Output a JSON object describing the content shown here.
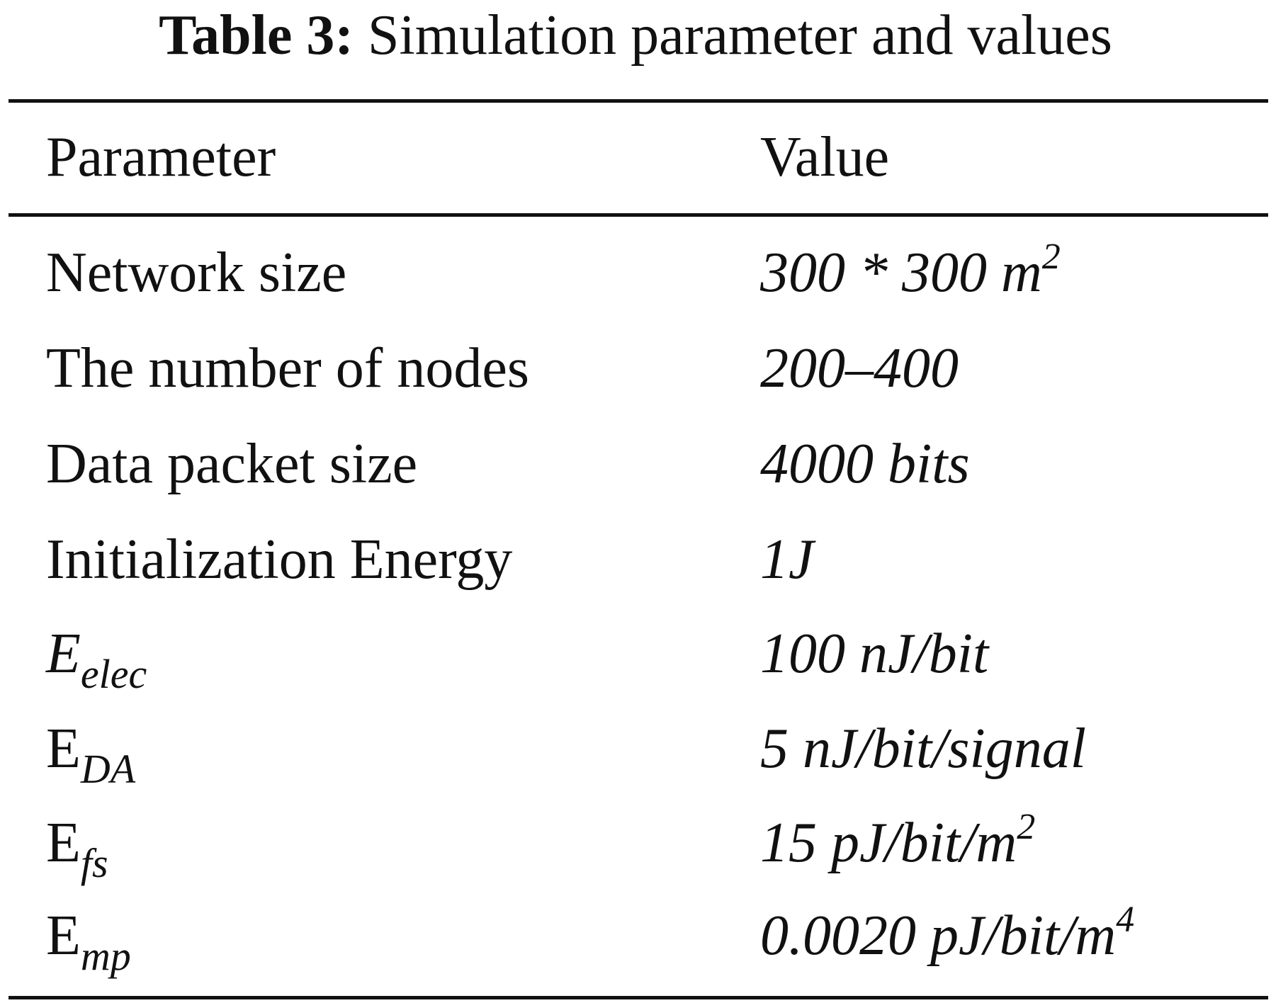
{
  "caption": {
    "label": "Table 3:",
    "title": "Simulation parameter and values"
  },
  "table": {
    "headers": {
      "parameter": "Parameter",
      "value": "Value"
    },
    "rows": [
      {
        "parameter": "Network size",
        "value": "300 * 300 m",
        "value_sup": "2"
      },
      {
        "parameter": "The number of nodes",
        "value": "200–400"
      },
      {
        "parameter": "Data packet size",
        "value": "4000 bits"
      },
      {
        "parameter": "Initialization Energy",
        "value": "1J"
      },
      {
        "parameter_base": "E",
        "parameter_sub": "elec",
        "value": "100 nJ/bit"
      },
      {
        "parameter_base": "E",
        "parameter_sub": "DA",
        "value": "5 nJ/bit/signal"
      },
      {
        "parameter_base": "E",
        "parameter_sub": "fs",
        "value": "15 pJ/bit/m",
        "value_sup": "2"
      },
      {
        "parameter_base": "E",
        "parameter_sub": "mp",
        "value": "0.0020 pJ/bit/m",
        "value_sup": "4"
      }
    ]
  }
}
